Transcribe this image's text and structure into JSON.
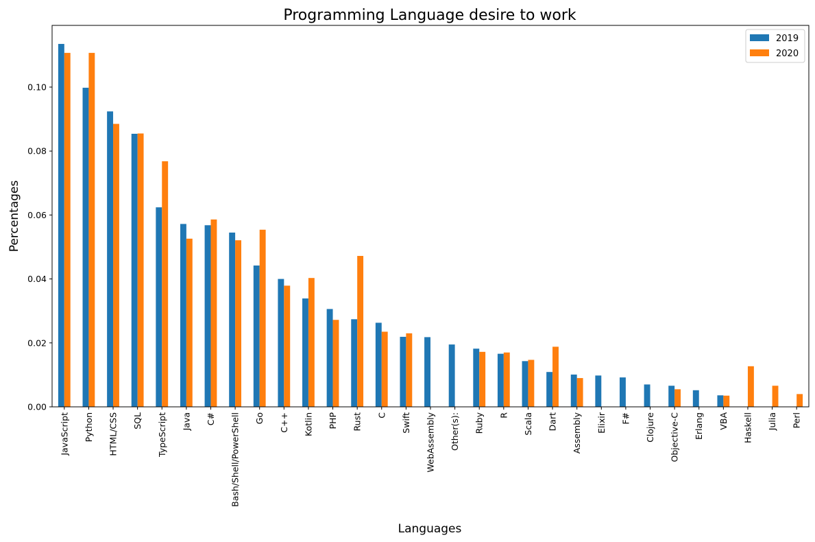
{
  "chart_data": {
    "type": "bar",
    "title": "Programming Language desire to work",
    "xlabel": "Languages",
    "ylabel": "Percentages",
    "ylim": [
      0,
      0.1193
    ],
    "yticks": [
      "0.00",
      "0.02",
      "0.04",
      "0.06",
      "0.08",
      "0.10"
    ],
    "legend_position": "top-right",
    "grid": false,
    "categories": [
      "JavaScript",
      "Python",
      "HTML/CSS",
      "SQL",
      "TypeScript",
      "Java",
      "C#",
      "Bash/Shell/PowerShell",
      "Go",
      "C++",
      "Kotlin",
      "PHP",
      "Rust",
      "C",
      "Swift",
      "WebAssembly",
      "Other(s):",
      "Ruby",
      "R",
      "Scala",
      "Dart",
      "Assembly",
      "Elixir",
      "F#",
      "Clojure",
      "Objective-C",
      "Erlang",
      "VBA",
      "Haskell",
      "Julia",
      "Perl"
    ],
    "series": [
      {
        "name": "2019",
        "color": "#1f77b4",
        "values": [
          0.1135,
          0.0998,
          0.0924,
          0.0854,
          0.0624,
          0.0572,
          0.0568,
          0.0545,
          0.0442,
          0.04,
          0.0339,
          0.0306,
          0.0274,
          0.0263,
          0.0219,
          0.0218,
          0.0195,
          0.0182,
          0.0166,
          0.0143,
          0.0109,
          0.0101,
          0.0098,
          0.0092,
          0.007,
          0.0066,
          0.0052,
          0.0036,
          0,
          0,
          0
        ]
      },
      {
        "name": "2020",
        "color": "#ff7f0e",
        "values": [
          0.1107,
          0.1107,
          0.0885,
          0.0855,
          0.0768,
          0.0526,
          0.0586,
          0.0521,
          0.0554,
          0.0379,
          0.0403,
          0.0272,
          0.0472,
          0.0235,
          0.023,
          0,
          0,
          0.0172,
          0.017,
          0.0147,
          0.0188,
          0.009,
          0,
          0,
          0,
          0.0055,
          0,
          0.0035,
          0.0127,
          0.0066,
          0.004
        ]
      }
    ]
  }
}
